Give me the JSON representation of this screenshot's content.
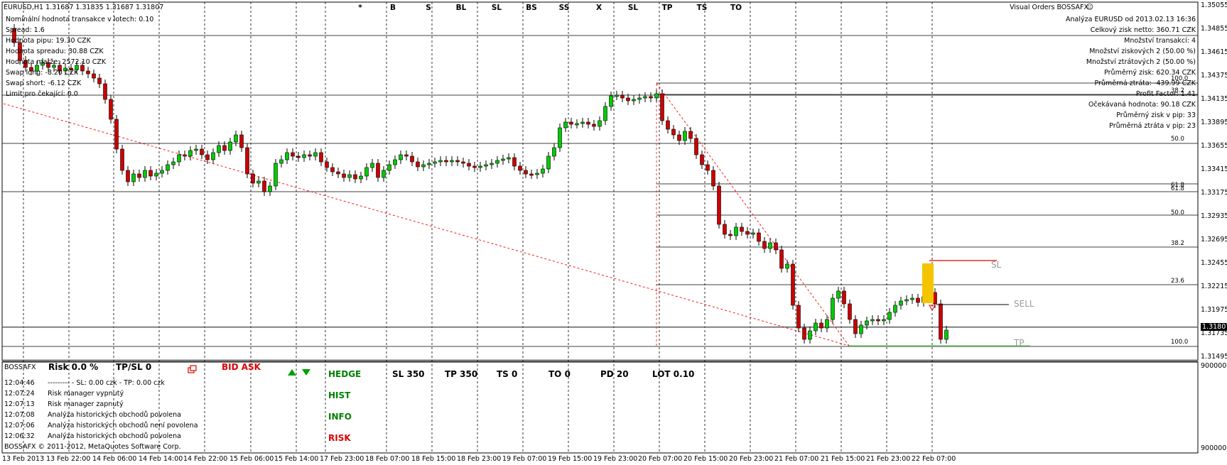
{
  "header": {
    "symbol_line": "EURUSD,H1  1.31687 1.31835 1.31687 1.31807",
    "info_lines": [
      "Nominální hodnota transakce v lotech:  0.10",
      "Spread:  1.6",
      "Hodnota pipu:  19.30  CZK",
      "Hodnota spreadu:  30.88  CZK",
      "Hodnota marže:  2572.10  CZK",
      "Swap long: -8.20  CZK",
      "Swap short: -6.12 CZK",
      "Limit pro čekající:  0.0"
    ]
  },
  "top_buttons": [
    "*",
    "B",
    "S",
    "BL",
    "SL",
    "BS",
    "SS",
    "X",
    "SL",
    "TP",
    "TS",
    "TO"
  ],
  "right_panel": {
    "title": "Visual Orders BOSSAFX",
    "lines": [
      "Analýza   EURUSD  od  2013.02.13 16:36",
      "Celkový zisk netto: 360.71 CZK",
      "Množství transakcí: 4",
      "Množství ziskových 2  (50.00 %)",
      "Množství ztrátových 2  (50.00 %)",
      "Průměrný zisk: 620.34 CZK",
      "Průměrná ztráta: -439.99 CZK",
      "Profit Factor: 1.41",
      "Očekávaná hodnota: 90.18 CZK",
      "Průměrný zisk v pip: 33",
      "Průměrná ztráta v pip: 23"
    ]
  },
  "price_axis": [
    "1.35055",
    "1.34855",
    "1.34615",
    "1.34375",
    "1.34135",
    "1.33895",
    "1.33655",
    "1.33415",
    "1.33175",
    "1.32935",
    "1.32695",
    "1.32455",
    "1.32215",
    "1.31975",
    "1.31735",
    "1.31495"
  ],
  "current_price": "1.31807",
  "fib_labels": [
    "100.0",
    "38.2",
    "50.0",
    "61.8",
    "61.8",
    "50.0",
    "38.2",
    "23.6",
    "100.0"
  ],
  "order_labels": {
    "sl": "SL",
    "sell": "SELL",
    "tp": "TP"
  },
  "time_axis": [
    "13 Feb 2013",
    "13 Feb 22:00",
    "14 Feb 06:00",
    "14 Feb 14:00",
    "14 Feb 22:00",
    "15 Feb 06:00",
    "15 Feb 14:00",
    "17 Feb 23:00",
    "18 Feb 07:00",
    "18 Feb 15:00",
    "18 Feb 23:00",
    "19 Feb 07:00",
    "19 Feb 15:00",
    "19 Feb 23:00",
    "20 Feb 07:00",
    "20 Feb 15:00",
    "20 Feb 23:00",
    "21 Feb 07:00",
    "21 Feb 15:00",
    "21 Feb 23:00",
    "22 Feb 07:00"
  ],
  "indicator": {
    "name": "BOSSAFX",
    "risk": "Risk  0.0 %",
    "tpsl": "TP/SL  0",
    "bid_ask": "BID ASK",
    "hedge": "HEDGE",
    "hist": "HIST",
    "info": "INFO",
    "risk_btn": "RISK",
    "params": {
      "sl": "SL  350",
      "tp": "TP  350",
      "ts": "TS  0",
      "to": "TO  0",
      "pd": "PD  20",
      "lot": "LOT  0.10"
    },
    "log": [
      {
        "time": "12:04:46",
        "msg": "--------- - SL: 0.00 czk - TP: 0.00 czk"
      },
      {
        "time": "12:07:24",
        "msg": "Risk manager vypnutý"
      },
      {
        "time": "12:07:13",
        "msg": "Risk manager zapnutý"
      },
      {
        "time": "12:07:08",
        "msg": "Analýza historických obchodů povolena"
      },
      {
        "time": "12:07:06",
        "msg": "Analýza historických obchodů není povolena"
      },
      {
        "time": "12:06:32",
        "msg": "Analýza historických obchodů povolena"
      }
    ],
    "copyright": "BOSSAFX © 2011-2012, MetaQuotes Software Corp.",
    "axis_top": "9000000",
    "axis_bottom": "9000000"
  },
  "colors": {
    "bull": "#00cc00",
    "bear": "#cc0000",
    "highlight": "#f5c400",
    "tp_line": "#66dd66",
    "fib_dash": "#ff0000"
  }
}
